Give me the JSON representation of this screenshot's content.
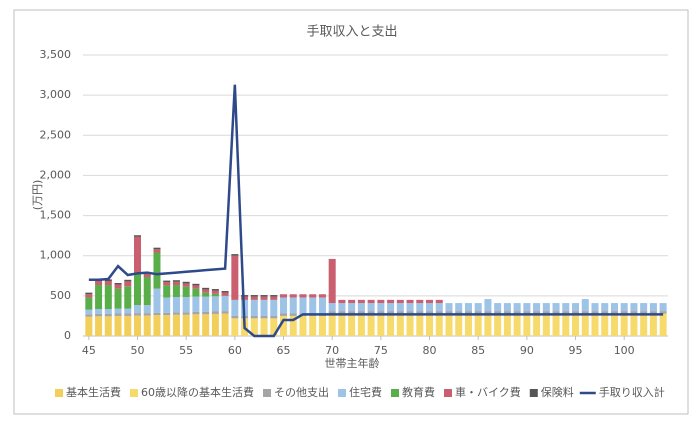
{
  "chart_data": {
    "type": "bar",
    "stacked": true,
    "title": "手取収入と支出",
    "x_label": "世帯主年齢",
    "y_label": "(万円)",
    "x": [
      45,
      46,
      47,
      48,
      49,
      50,
      51,
      52,
      53,
      54,
      55,
      56,
      57,
      58,
      59,
      60,
      61,
      62,
      63,
      64,
      65,
      66,
      67,
      68,
      69,
      70,
      71,
      72,
      73,
      74,
      75,
      76,
      77,
      78,
      79,
      80,
      81,
      82,
      83,
      84,
      85,
      86,
      87,
      88,
      89,
      90,
      91,
      92,
      93,
      94,
      95,
      96,
      97,
      98,
      99,
      100,
      101,
      102,
      103,
      104
    ],
    "xlim": [
      44.4,
      104.5
    ],
    "xticks": [
      45,
      50,
      55,
      60,
      65,
      70,
      75,
      80,
      85,
      90,
      95,
      100
    ],
    "ylim": [
      0,
      3500
    ],
    "yticks": [
      0,
      500,
      {
        "value": 1000,
        "label": "1,000"
      },
      {
        "value": 1500,
        "label": "1,500"
      },
      {
        "value": 2000,
        "label": "2,000"
      },
      {
        "value": 2500,
        "label": "2,500"
      },
      {
        "value": 3000,
        "label": "3,000"
      },
      {
        "value": 3500,
        "label": "3,500"
      }
    ],
    "grid": true,
    "legend": "bottom",
    "series": [
      {
        "name": "基本生活費",
        "color": "#f2cf5b",
        "values": [
          240,
          245,
          245,
          250,
          250,
          255,
          255,
          260,
          260,
          265,
          265,
          270,
          270,
          275,
          280,
          null,
          null,
          null,
          null,
          null,
          null,
          null,
          null,
          null,
          null,
          null,
          null,
          null,
          null,
          null,
          null,
          null,
          null,
          null,
          null,
          null,
          null,
          null,
          null,
          null,
          null,
          null,
          null,
          null,
          null,
          null,
          null,
          null,
          null,
          null,
          null,
          null,
          null,
          null,
          null,
          null,
          null,
          null,
          null,
          null
        ]
      },
      {
        "name": "60歳以降の基本生活費",
        "color": "#f7da6c",
        "values": [
          null,
          null,
          null,
          null,
          null,
          null,
          null,
          null,
          null,
          null,
          null,
          null,
          null,
          null,
          null,
          220,
          220,
          220,
          220,
          220,
          250,
          250,
          250,
          250,
          250,
          280,
          280,
          280,
          280,
          280,
          280,
          280,
          280,
          280,
          280,
          280,
          280,
          280,
          280,
          280,
          280,
          280,
          280,
          280,
          280,
          280,
          280,
          280,
          280,
          280,
          280,
          280,
          280,
          280,
          280,
          280,
          280,
          280,
          280,
          280
        ]
      },
      {
        "name": "その他支出",
        "color": "#a5a5a5",
        "values": [
          30,
          30,
          30,
          30,
          30,
          30,
          30,
          30,
          30,
          30,
          30,
          30,
          30,
          30,
          30,
          30,
          30,
          30,
          30,
          30,
          30,
          30,
          30,
          30,
          30,
          30,
          30,
          30,
          30,
          30,
          30,
          30,
          30,
          30,
          30,
          30,
          30,
          30,
          30,
          30,
          30,
          30,
          30,
          30,
          30,
          30,
          30,
          30,
          30,
          30,
          30,
          30,
          30,
          30,
          30,
          30,
          30,
          30,
          30,
          30
        ]
      },
      {
        "name": "住宅費",
        "color": "#9dc3e6",
        "values": [
          60,
          60,
          60,
          60,
          60,
          100,
          100,
          300,
          190,
          190,
          190,
          190,
          190,
          190,
          190,
          200,
          200,
          200,
          200,
          200,
          200,
          200,
          200,
          200,
          200,
          100,
          100,
          100,
          100,
          100,
          100,
          100,
          100,
          100,
          100,
          100,
          100,
          100,
          100,
          100,
          100,
          150,
          100,
          100,
          100,
          100,
          100,
          100,
          100,
          100,
          100,
          150,
          100,
          100,
          100,
          100,
          100,
          100,
          100,
          100
        ]
      },
      {
        "name": "教育費",
        "color": "#5aae4a",
        "values": [
          150,
          300,
          300,
          250,
          280,
          400,
          350,
          450,
          150,
          150,
          130,
          100,
          50,
          30,
          0,
          null,
          null,
          null,
          null,
          null,
          null,
          null,
          null,
          null,
          null,
          null,
          null,
          null,
          null,
          null,
          null,
          null,
          null,
          null,
          null,
          null,
          null,
          null,
          null,
          null,
          null,
          null,
          null,
          null,
          null,
          null,
          null,
          null,
          null,
          null,
          null,
          null,
          null,
          null,
          null,
          null,
          null,
          null,
          null,
          null
        ]
      },
      {
        "name": "車・バイク費",
        "color": "#c95f6f",
        "values": [
          40,
          50,
          50,
          50,
          60,
          450,
          40,
          40,
          40,
          40,
          40,
          40,
          40,
          40,
          40,
          550,
          40,
          40,
          40,
          40,
          40,
          40,
          40,
          40,
          40,
          550,
          40,
          40,
          40,
          40,
          40,
          40,
          40,
          40,
          40,
          40,
          40,
          null,
          null,
          null,
          null,
          null,
          null,
          null,
          null,
          null,
          null,
          null,
          null,
          null,
          null,
          null,
          null,
          null,
          null,
          null,
          null,
          null,
          null,
          null
        ]
      },
      {
        "name": "保険料",
        "color": "#555555",
        "values": [
          20,
          20,
          20,
          20,
          20,
          20,
          20,
          20,
          20,
          20,
          20,
          20,
          20,
          20,
          20,
          20,
          20,
          20,
          20,
          20,
          null,
          null,
          null,
          null,
          null,
          null,
          null,
          null,
          null,
          null,
          null,
          null,
          null,
          null,
          null,
          null,
          null,
          null,
          null,
          null,
          null,
          null,
          null,
          null,
          null,
          null,
          null,
          null,
          null,
          null,
          null,
          null,
          null,
          null,
          null,
          null,
          null,
          null,
          null,
          null
        ]
      },
      {
        "name": "手取り収入計",
        "type": "line",
        "color": "#2f4a8a",
        "values": [
          700,
          700,
          710,
          870,
          760,
          780,
          790,
          770,
          780,
          790,
          800,
          810,
          820,
          830,
          840,
          3130,
          100,
          0,
          0,
          0,
          200,
          200,
          270,
          270,
          270,
          270,
          270,
          270,
          270,
          270,
          270,
          270,
          270,
          270,
          270,
          270,
          270,
          270,
          270,
          270,
          270,
          270,
          270,
          270,
          270,
          270,
          270,
          270,
          270,
          270,
          270,
          270,
          270,
          270,
          270,
          270,
          270,
          270,
          270,
          270
        ]
      }
    ]
  }
}
